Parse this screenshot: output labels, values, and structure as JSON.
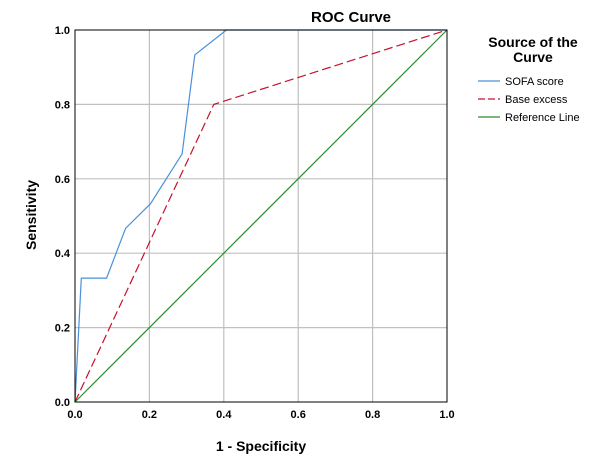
{
  "chart_data": {
    "type": "line",
    "title": "ROC Curve",
    "xlabel": "1 - Specificity",
    "ylabel": "Sensitivity",
    "xlim": [
      0.0,
      1.0
    ],
    "ylim": [
      0.0,
      1.0
    ],
    "xticks": [
      "0.0",
      "0.2",
      "0.4",
      "0.6",
      "0.8",
      "1.0"
    ],
    "yticks": [
      "0.0",
      "0.2",
      "0.4",
      "0.6",
      "0.8",
      "1.0"
    ],
    "grid": true,
    "legend": {
      "title_lines": [
        "Source of the",
        "Curve"
      ],
      "placement": "right"
    },
    "series": [
      {
        "name": "SOFA score",
        "color": "#4a90d9",
        "dash": "solid",
        "points": [
          [
            0.0,
            0.0
          ],
          [
            0.017,
            0.333
          ],
          [
            0.085,
            0.333
          ],
          [
            0.136,
            0.467
          ],
          [
            0.203,
            0.533
          ],
          [
            0.288,
            0.667
          ],
          [
            0.322,
            0.933
          ],
          [
            0.407,
            1.0
          ],
          [
            1.0,
            1.0
          ]
        ]
      },
      {
        "name": "Base excess",
        "color": "#c8102e",
        "dash": "dashed",
        "points": [
          [
            0.0,
            0.0
          ],
          [
            0.373,
            0.8
          ],
          [
            1.0,
            1.0
          ]
        ]
      },
      {
        "name": "Reference Line",
        "color": "#2e8b2e",
        "dash": "solid",
        "points": [
          [
            0.0,
            0.0
          ],
          [
            1.0,
            1.0
          ]
        ]
      }
    ]
  }
}
